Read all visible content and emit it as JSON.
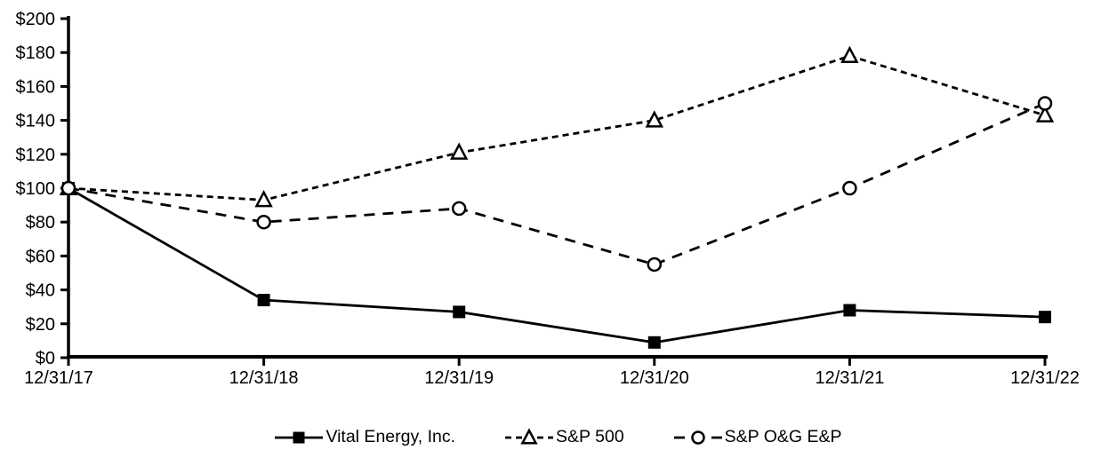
{
  "chart_data": {
    "type": "line",
    "title": "",
    "xlabel": "",
    "ylabel": "",
    "categories": [
      "12/31/17",
      "12/31/18",
      "12/31/19",
      "12/31/20",
      "12/31/21",
      "12/31/22"
    ],
    "series": [
      {
        "name": "Vital Energy, Inc.",
        "values": [
          100,
          34,
          27,
          9,
          28,
          24
        ],
        "line_style": "solid",
        "marker": "filled-square"
      },
      {
        "name": "S&P 500",
        "values": [
          100,
          93,
          121,
          140,
          178,
          143
        ],
        "line_style": "dashed-short",
        "marker": "open-triangle"
      },
      {
        "name": "S&P O&G E&P",
        "values": [
          100,
          80,
          88,
          55,
          100,
          150
        ],
        "line_style": "dashed-long",
        "marker": "open-circle"
      }
    ],
    "y_axis": {
      "min": 0,
      "max": 200,
      "step": 20,
      "tick_labels": [
        "$0",
        "$20",
        "$40",
        "$60",
        "$80",
        "$100",
        "$120",
        "$140",
        "$160",
        "$180",
        "$200"
      ]
    },
    "x_tick_labels": [
      "12/31/17",
      "12/31/18",
      "12/31/19",
      "12/31/20",
      "12/31/21",
      "12/31/22"
    ],
    "grid": false,
    "legend_position": "bottom-center",
    "line_color": "#000000",
    "background_color": "#ffffff"
  },
  "legend": {
    "items": [
      {
        "label": "Vital Energy, Inc."
      },
      {
        "label": "S&P 500"
      },
      {
        "label": "S&P O&G E&P"
      }
    ]
  }
}
